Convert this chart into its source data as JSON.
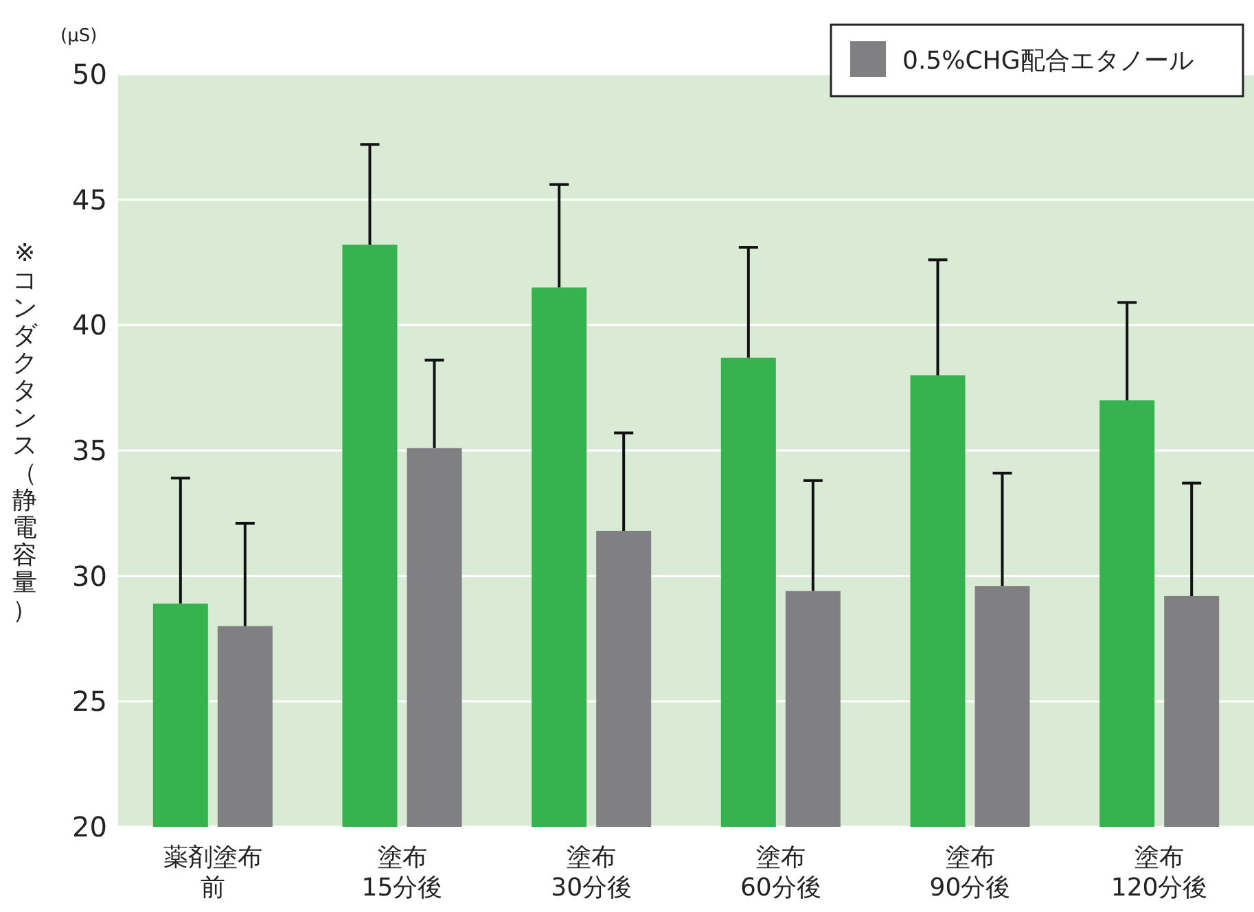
{
  "chart_data": {
    "type": "bar",
    "ylabel": "※コンダクタンス（静電容量）",
    "annotations": [
      "(μS)"
    ],
    "categories": [
      "薬剤塗布前",
      "塗布15分後",
      "塗布30分後",
      "塗布60分後",
      "塗布90分後",
      "塗布120分後"
    ],
    "series": [
      {
        "color": "#36b24f",
        "values": [
          28.9,
          43.2,
          41.5,
          38.7,
          38.0,
          37.0
        ],
        "errors": [
          [
            28.9,
            33.9
          ],
          [
            43.2,
            47.2
          ],
          [
            41.5,
            45.6
          ],
          [
            38.7,
            43.1
          ],
          [
            38.0,
            42.6
          ],
          [
            37.0,
            40.9
          ]
        ]
      },
      {
        "name": "0.5%CHG配合エタノール",
        "color": "#808083",
        "values": [
          28.0,
          35.1,
          31.8,
          29.4,
          29.6,
          29.2
        ],
        "errors": [
          [
            28.0,
            32.1
          ],
          [
            35.1,
            38.6
          ],
          [
            31.8,
            35.7
          ],
          [
            29.4,
            33.8
          ],
          [
            29.6,
            34.1
          ],
          [
            29.2,
            33.7
          ]
        ]
      }
    ],
    "ylim": [
      20,
      50
    ],
    "yticks": [
      20,
      25,
      30,
      35,
      40,
      45,
      50
    ],
    "grid": "y",
    "legend": "top right"
  }
}
